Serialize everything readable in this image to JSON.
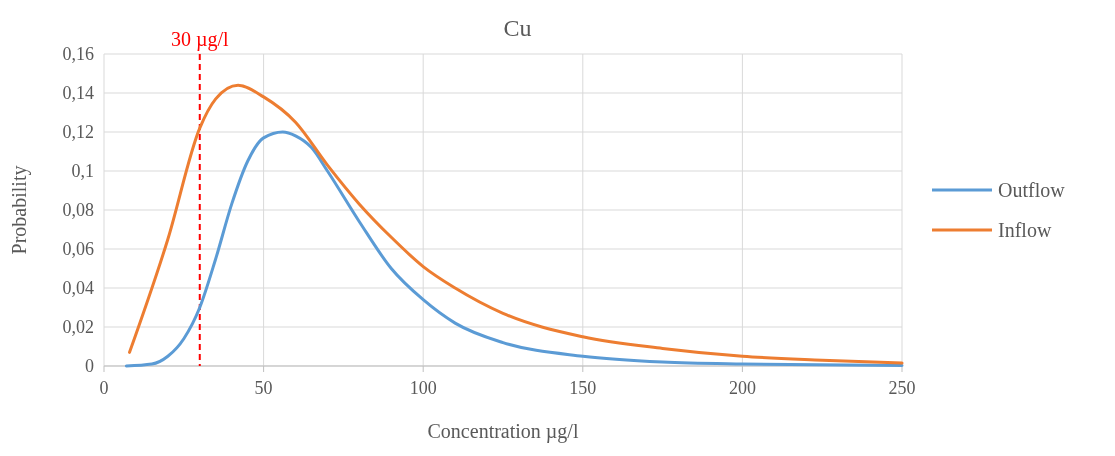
{
  "chart_data": {
    "type": "line",
    "title": "Cu",
    "xlabel": "Concentration µg/l",
    "ylabel": "Probability",
    "xlim": [
      0,
      250
    ],
    "xticks": [
      0,
      50,
      100,
      150,
      200,
      250
    ],
    "ylim": [
      0,
      0.16
    ],
    "yticks": [
      0,
      {
        "value": 0.02,
        "label": "0,02"
      },
      {
        "value": 0.04,
        "label": "0,04"
      },
      {
        "value": 0.06,
        "label": "0,06"
      },
      {
        "value": 0.08,
        "label": "0,08"
      },
      {
        "value": 0.1,
        "label": "0,1"
      },
      {
        "value": 0.12,
        "label": "0,12"
      },
      {
        "value": 0.14,
        "label": "0,14"
      },
      {
        "value": 0.16,
        "label": "0,16"
      }
    ],
    "grid": true,
    "legend": "right",
    "line_style": "solid",
    "series": [
      {
        "name": "Outflow",
        "color": "#5b9bd5",
        "x": [
          7,
          15,
          20,
          25,
          30,
          35,
          40,
          45,
          50,
          56,
          60,
          65,
          70,
          80,
          90,
          100,
          110,
          125,
          150,
          175,
          200,
          250
        ],
        "values": [
          0,
          0.001,
          0.005,
          0.014,
          0.03,
          0.055,
          0.083,
          0.105,
          0.117,
          0.12,
          0.118,
          0.112,
          0.1,
          0.074,
          0.05,
          0.034,
          0.022,
          0.012,
          0.005,
          0.002,
          0.001,
          0.0003
        ]
      },
      {
        "name": "Inflow",
        "color": "#ed7d31",
        "x": [
          8,
          20,
          30,
          35,
          42,
          50,
          60,
          70,
          80,
          90,
          100,
          110,
          125,
          150,
          175,
          200,
          225,
          250
        ],
        "values": [
          0.007,
          0.065,
          0.122,
          0.137,
          0.144,
          0.138,
          0.125,
          0.103,
          0.083,
          0.066,
          0.051,
          0.04,
          0.027,
          0.015,
          0.009,
          0.005,
          0.003,
          0.0015
        ]
      }
    ],
    "ref_lines": [
      {
        "axis": "x",
        "value": 30,
        "label": "30 µg/l",
        "color": "#ff0000",
        "line_style": "dashed"
      }
    ]
  }
}
